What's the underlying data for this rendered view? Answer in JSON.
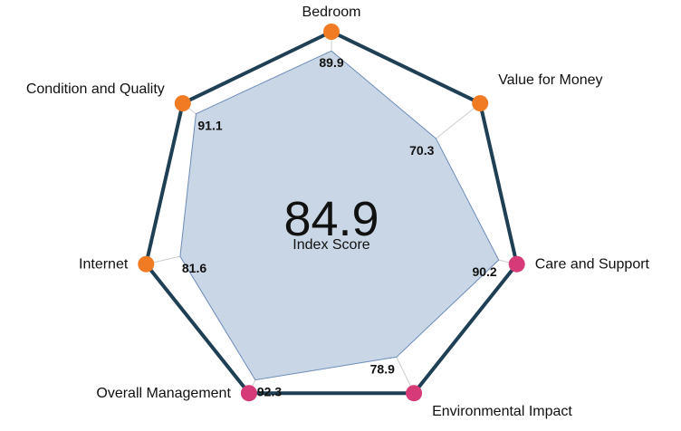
{
  "chart_data": {
    "type": "radar",
    "categories": [
      "Bedroom",
      "Value for Money",
      "Care and Support",
      "Environmental Impact",
      "Overall Management",
      "Internet",
      "Condition and Quality"
    ],
    "values": [
      89.9,
      70.3,
      90.2,
      78.9,
      92.3,
      81.6,
      91.1
    ],
    "value_labels": [
      "89.9",
      "70.3",
      "90.2",
      "78.9",
      "92.3",
      "81.6",
      "91.1"
    ],
    "range": [
      0,
      100
    ],
    "marker_colors": [
      "#f07b22",
      "#f07b22",
      "#d63b78",
      "#d63b78",
      "#d63b78",
      "#f07b22",
      "#f07b22"
    ],
    "fill_color": "#c9d6e5",
    "line_color": "#6b8cb8",
    "outline_color": "#1f3f55",
    "grid_color": "#cccccc",
    "center": {
      "value": "84.9",
      "label": "Index Score"
    }
  }
}
